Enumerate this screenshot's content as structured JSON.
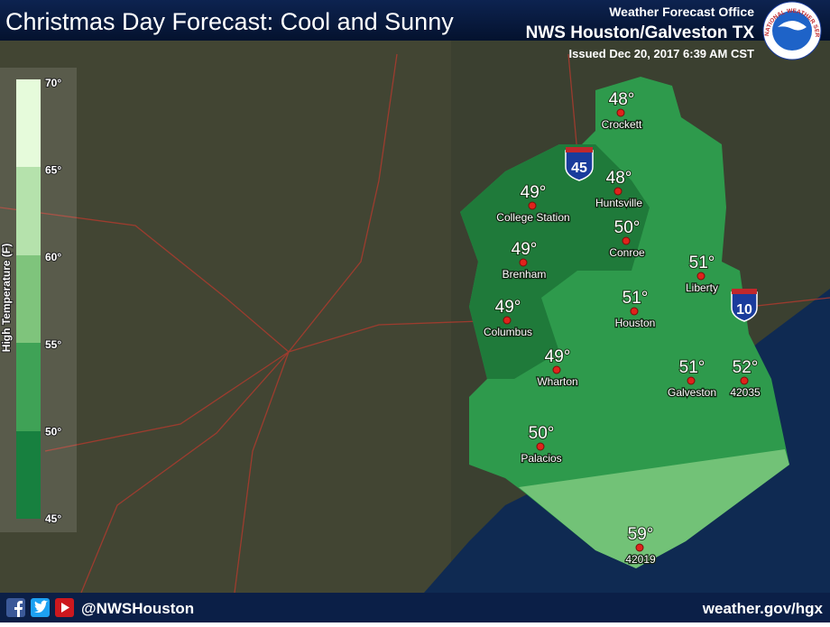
{
  "header": {
    "title": "Christmas Day Forecast: Cool and Sunny",
    "office": "Weather Forecast Office",
    "name": "NWS Houston/Galveston TX",
    "issued": "Issued Dec 20, 2017 6:39 AM CST",
    "logo": "NATIONAL WEATHER SERVICE"
  },
  "legend": {
    "title": "High Temperature (F)",
    "ticks": [
      "70°",
      "65°",
      "60°",
      "55°",
      "50°",
      "45°"
    ]
  },
  "shields": [
    "45",
    "10"
  ],
  "stations": [
    {
      "temp": "48°",
      "name": "Crockett"
    },
    {
      "temp": "48°",
      "name": "Huntsville"
    },
    {
      "temp": "49°",
      "name": "College Station"
    },
    {
      "temp": "49°",
      "name": "Brenham"
    },
    {
      "temp": "50°",
      "name": "Conroe"
    },
    {
      "temp": "51°",
      "name": "Liberty"
    },
    {
      "temp": "51°",
      "name": "Houston"
    },
    {
      "temp": "49°",
      "name": "Columbus"
    },
    {
      "temp": "49°",
      "name": "Wharton"
    },
    {
      "temp": "51°",
      "name": "Galveston"
    },
    {
      "temp": "52°",
      "name": "42035"
    },
    {
      "temp": "50°",
      "name": "Palacios"
    },
    {
      "temp": "59°",
      "name": "42019"
    }
  ],
  "footer": {
    "handle": "@NWSHouston",
    "url": "weather.gov/hgx"
  }
}
